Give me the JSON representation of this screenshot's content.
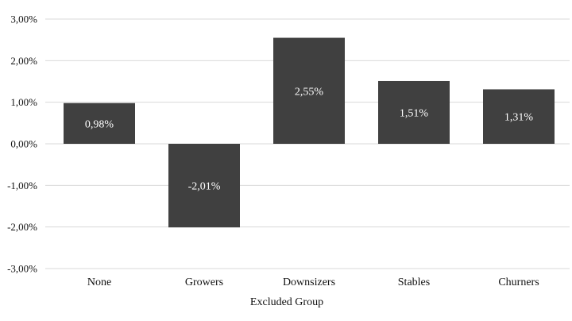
{
  "chart_data": {
    "type": "bar",
    "title": "",
    "xlabel": "Excluded Group",
    "ylabel": "",
    "categories": [
      "None",
      "Growers",
      "Downsizers",
      "Stables",
      "Churners"
    ],
    "values": [
      0.98,
      -2.01,
      2.55,
      1.51,
      1.31
    ],
    "data_labels": [
      "0,98%",
      "-2,01%",
      "2,55%",
      "1,51%",
      "1,31%"
    ],
    "ylim": [
      -3,
      3
    ],
    "yticks": [
      3,
      2,
      1,
      0,
      -1,
      -2,
      -3
    ],
    "ytick_labels": [
      "3,00%",
      "2,00%",
      "1,00%",
      "0,00%",
      "-1,00%",
      "-2,00%",
      "-3,00%"
    ],
    "grid": true,
    "legend": "none",
    "bar_color": "#404040",
    "grid_color": "#d9d9d9"
  }
}
